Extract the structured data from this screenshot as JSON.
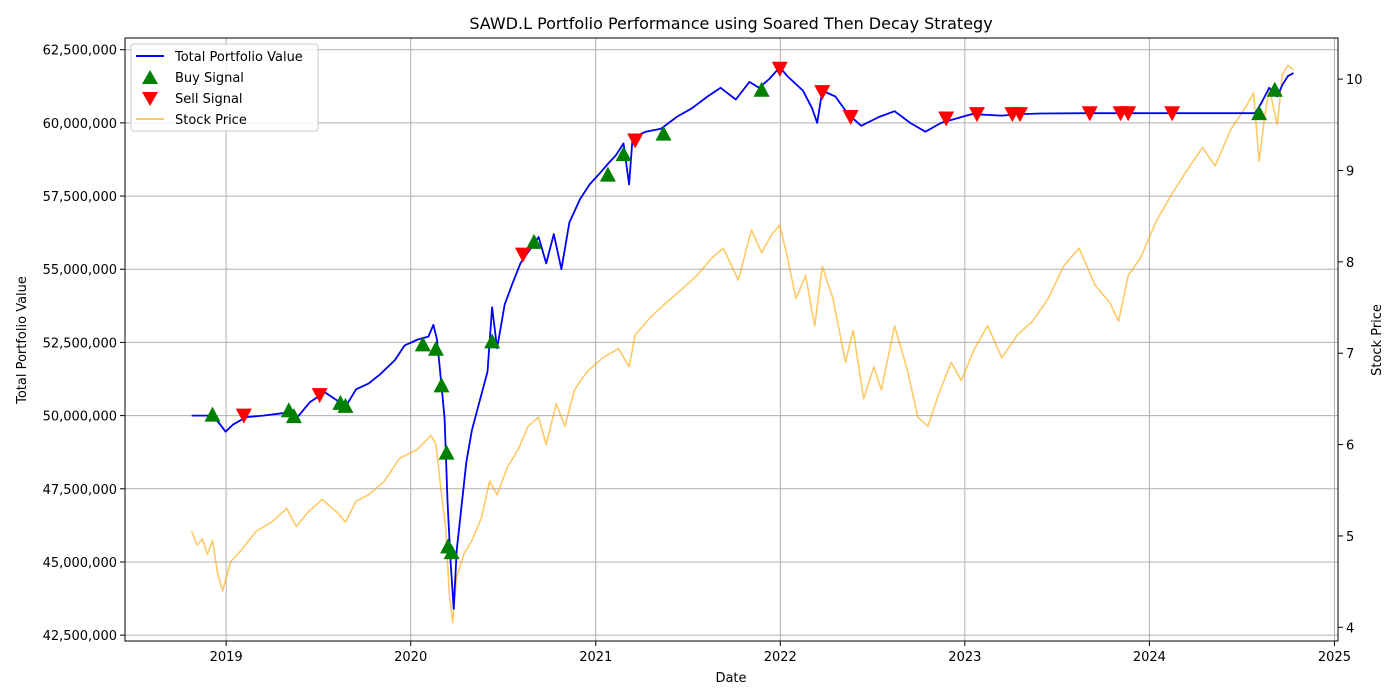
{
  "chart_data": {
    "type": "line",
    "title": "SAWD.L Portfolio Performance using Soared Then Decay Strategy",
    "xlabel": "Date",
    "ylabel": "Total Portfolio Value",
    "ylabel_right": "Stock Price",
    "xlim": [
      "2018-06-15",
      "2025-01-08"
    ],
    "ylim": [
      42300000,
      62900000
    ],
    "ylim_right": [
      3.85,
      10.45
    ],
    "grid": true,
    "legend_position": "top-left",
    "x_ticks": [
      "2019",
      "2020",
      "2021",
      "2022",
      "2023",
      "2024",
      "2025"
    ],
    "x_tick_dates": [
      "2019-01-01",
      "2020-01-01",
      "2021-01-01",
      "2022-01-01",
      "2023-01-01",
      "2024-01-01",
      "2025-01-01"
    ],
    "y_ticks": [
      42500000,
      45000000,
      47500000,
      50000000,
      52500000,
      55000000,
      57500000,
      60000000,
      62500000
    ],
    "y_tick_labels": [
      "42,500,000",
      "45,000,000",
      "47,500,000",
      "50,000,000",
      "52,500,000",
      "55,000,000",
      "57,500,000",
      "60,000,000",
      "62,500,000"
    ],
    "y_ticks_right": [
      4,
      5,
      6,
      7,
      8,
      9,
      10
    ],
    "y_tick_labels_right": [
      "4",
      "5",
      "6",
      "7",
      "8",
      "9",
      "10"
    ],
    "series": [
      {
        "name": "Total Portfolio Value",
        "color": "#0000ff",
        "axis": "left",
        "points": [
          [
            "2018-10-25",
            50000000
          ],
          [
            "2018-12-05",
            50000000
          ],
          [
            "2018-12-20",
            49700000
          ],
          [
            "2018-12-31",
            49450000
          ],
          [
            "2019-01-15",
            49700000
          ],
          [
            "2019-02-10",
            49950000
          ],
          [
            "2019-03-15",
            50000000
          ],
          [
            "2019-05-01",
            50100000
          ],
          [
            "2019-05-20",
            49900000
          ],
          [
            "2019-06-15",
            50450000
          ],
          [
            "2019-07-15",
            50800000
          ],
          [
            "2019-08-10",
            50500000
          ],
          [
            "2019-08-25",
            50300000
          ],
          [
            "2019-09-15",
            50900000
          ],
          [
            "2019-10-10",
            51100000
          ],
          [
            "2019-11-01",
            51400000
          ],
          [
            "2019-12-01",
            51900000
          ],
          [
            "2019-12-20",
            52400000
          ],
          [
            "2020-01-15",
            52600000
          ],
          [
            "2020-02-05",
            52700000
          ],
          [
            "2020-02-15",
            53100000
          ],
          [
            "2020-02-22",
            52600000
          ],
          [
            "2020-03-01",
            51200000
          ],
          [
            "2020-03-08",
            49900000
          ],
          [
            "2020-03-14",
            47000000
          ],
          [
            "2020-03-20",
            45000000
          ],
          [
            "2020-03-26",
            43400000
          ],
          [
            "2020-04-01",
            45400000
          ],
          [
            "2020-04-10",
            46800000
          ],
          [
            "2020-04-20",
            48400000
          ],
          [
            "2020-05-01",
            49500000
          ],
          [
            "2020-05-15",
            50400000
          ],
          [
            "2020-06-01",
            51500000
          ],
          [
            "2020-06-10",
            53700000
          ],
          [
            "2020-06-20",
            52300000
          ],
          [
            "2020-07-05",
            53800000
          ],
          [
            "2020-07-20",
            54500000
          ],
          [
            "2020-08-05",
            55200000
          ],
          [
            "2020-08-25",
            55700000
          ],
          [
            "2020-09-10",
            56100000
          ],
          [
            "2020-09-25",
            55200000
          ],
          [
            "2020-10-10",
            56200000
          ],
          [
            "2020-10-25",
            55000000
          ],
          [
            "2020-11-10",
            56600000
          ],
          [
            "2020-12-01",
            57400000
          ],
          [
            "2020-12-20",
            57900000
          ],
          [
            "2021-01-10",
            58300000
          ],
          [
            "2021-01-25",
            58600000
          ],
          [
            "2021-02-10",
            58900000
          ],
          [
            "2021-02-25",
            59300000
          ],
          [
            "2021-03-08",
            57900000
          ],
          [
            "2021-03-15",
            59500000
          ],
          [
            "2021-04-10",
            59700000
          ],
          [
            "2021-05-10",
            59800000
          ],
          [
            "2021-06-10",
            60200000
          ],
          [
            "2021-07-10",
            60500000
          ],
          [
            "2021-08-10",
            60900000
          ],
          [
            "2021-09-05",
            61200000
          ],
          [
            "2021-10-05",
            60800000
          ],
          [
            "2021-11-01",
            61400000
          ],
          [
            "2021-11-20",
            61200000
          ],
          [
            "2021-12-10",
            61500000
          ],
          [
            "2021-12-31",
            61900000
          ],
          [
            "2022-01-15",
            61600000
          ],
          [
            "2022-02-15",
            61100000
          ],
          [
            "2022-03-05",
            60500000
          ],
          [
            "2022-03-15",
            60000000
          ],
          [
            "2022-03-25",
            61100000
          ],
          [
            "2022-04-20",
            60900000
          ],
          [
            "2022-05-15",
            60300000
          ],
          [
            "2022-06-10",
            59900000
          ],
          [
            "2022-07-15",
            60200000
          ],
          [
            "2022-08-15",
            60400000
          ],
          [
            "2022-09-15",
            60000000
          ],
          [
            "2022-10-15",
            59700000
          ],
          [
            "2022-11-15",
            60000000
          ],
          [
            "2022-12-15",
            60150000
          ],
          [
            "2023-01-15",
            60300000
          ],
          [
            "2023-03-15",
            60250000
          ],
          [
            "2023-04-20",
            60300000
          ],
          [
            "2023-06-01",
            60320000
          ],
          [
            "2023-09-01",
            60330000
          ],
          [
            "2023-12-01",
            60330000
          ],
          [
            "2024-03-01",
            60330000
          ],
          [
            "2024-06-01",
            60330000
          ],
          [
            "2024-07-28",
            60330000
          ],
          [
            "2024-08-10",
            60700000
          ],
          [
            "2024-08-25",
            61200000
          ],
          [
            "2024-09-10",
            60900000
          ],
          [
            "2024-09-20",
            61300000
          ],
          [
            "2024-10-01",
            61600000
          ],
          [
            "2024-10-12",
            61700000
          ]
        ]
      },
      {
        "name": "Stock Price",
        "color": "#ffa500",
        "axis": "right",
        "points": [
          [
            "2018-10-25",
            5.05
          ],
          [
            "2018-11-05",
            4.9
          ],
          [
            "2018-11-15",
            4.97
          ],
          [
            "2018-11-25",
            4.8
          ],
          [
            "2018-12-05",
            4.95
          ],
          [
            "2018-12-15",
            4.6
          ],
          [
            "2018-12-25",
            4.4
          ],
          [
            "2019-01-10",
            4.72
          ],
          [
            "2019-02-01",
            4.85
          ],
          [
            "2019-03-01",
            5.05
          ],
          [
            "2019-04-01",
            5.15
          ],
          [
            "2019-05-01",
            5.3
          ],
          [
            "2019-05-20",
            5.1
          ],
          [
            "2019-06-10",
            5.25
          ],
          [
            "2019-07-10",
            5.4
          ],
          [
            "2019-08-10",
            5.25
          ],
          [
            "2019-08-25",
            5.15
          ],
          [
            "2019-09-15",
            5.38
          ],
          [
            "2019-10-10",
            5.45
          ],
          [
            "2019-11-10",
            5.6
          ],
          [
            "2019-12-10",
            5.85
          ],
          [
            "2020-01-15",
            5.95
          ],
          [
            "2020-02-10",
            6.1
          ],
          [
            "2020-02-20",
            6.0
          ],
          [
            "2020-03-01",
            5.5
          ],
          [
            "2020-03-10",
            5.1
          ],
          [
            "2020-03-17",
            4.4
          ],
          [
            "2020-03-24",
            4.05
          ],
          [
            "2020-04-01",
            4.55
          ],
          [
            "2020-04-15",
            4.8
          ],
          [
            "2020-05-01",
            4.95
          ],
          [
            "2020-05-20",
            5.2
          ],
          [
            "2020-06-05",
            5.6
          ],
          [
            "2020-06-20",
            5.45
          ],
          [
            "2020-07-10",
            5.75
          ],
          [
            "2020-08-01",
            5.95
          ],
          [
            "2020-08-20",
            6.2
          ],
          [
            "2020-09-10",
            6.3
          ],
          [
            "2020-09-25",
            6.0
          ],
          [
            "2020-10-15",
            6.45
          ],
          [
            "2020-11-01",
            6.2
          ],
          [
            "2020-11-20",
            6.6
          ],
          [
            "2020-12-15",
            6.8
          ],
          [
            "2021-01-15",
            6.95
          ],
          [
            "2021-02-15",
            7.05
          ],
          [
            "2021-03-08",
            6.85
          ],
          [
            "2021-03-20",
            7.2
          ],
          [
            "2021-04-20",
            7.4
          ],
          [
            "2021-05-20",
            7.55
          ],
          [
            "2021-06-20",
            7.7
          ],
          [
            "2021-07-20",
            7.85
          ],
          [
            "2021-08-20",
            8.05
          ],
          [
            "2021-09-10",
            8.15
          ],
          [
            "2021-10-10",
            7.8
          ],
          [
            "2021-11-05",
            8.35
          ],
          [
            "2021-11-25",
            8.1
          ],
          [
            "2021-12-15",
            8.3
          ],
          [
            "2021-12-31",
            8.4
          ],
          [
            "2022-01-15",
            8.05
          ],
          [
            "2022-02-01",
            7.6
          ],
          [
            "2022-02-20",
            7.85
          ],
          [
            "2022-03-10",
            7.3
          ],
          [
            "2022-03-25",
            7.95
          ],
          [
            "2022-04-15",
            7.6
          ],
          [
            "2022-05-10",
            6.9
          ],
          [
            "2022-05-25",
            7.25
          ],
          [
            "2022-06-15",
            6.5
          ],
          [
            "2022-07-05",
            6.85
          ],
          [
            "2022-07-20",
            6.6
          ],
          [
            "2022-08-15",
            7.3
          ],
          [
            "2022-09-10",
            6.8
          ],
          [
            "2022-09-30",
            6.3
          ],
          [
            "2022-10-20",
            6.2
          ],
          [
            "2022-11-10",
            6.55
          ],
          [
            "2022-12-05",
            6.9
          ],
          [
            "2022-12-25",
            6.7
          ],
          [
            "2023-01-20",
            7.05
          ],
          [
            "2023-02-15",
            7.3
          ],
          [
            "2023-03-15",
            6.95
          ],
          [
            "2023-04-15",
            7.2
          ],
          [
            "2023-05-15",
            7.35
          ],
          [
            "2023-06-15",
            7.6
          ],
          [
            "2023-07-15",
            7.95
          ],
          [
            "2023-08-15",
            8.15
          ],
          [
            "2023-09-15",
            7.75
          ],
          [
            "2023-10-15",
            7.55
          ],
          [
            "2023-11-01",
            7.35
          ],
          [
            "2023-11-20",
            7.85
          ],
          [
            "2023-12-15",
            8.05
          ],
          [
            "2024-01-15",
            8.45
          ],
          [
            "2024-02-15",
            8.75
          ],
          [
            "2024-03-15",
            9.0
          ],
          [
            "2024-04-15",
            9.25
          ],
          [
            "2024-05-10",
            9.05
          ],
          [
            "2024-06-10",
            9.45
          ],
          [
            "2024-07-10",
            9.7
          ],
          [
            "2024-07-25",
            9.85
          ],
          [
            "2024-08-05",
            9.1
          ],
          [
            "2024-08-15",
            9.55
          ],
          [
            "2024-08-25",
            9.9
          ],
          [
            "2024-09-10",
            9.5
          ],
          [
            "2024-09-20",
            10.05
          ],
          [
            "2024-10-01",
            10.15
          ],
          [
            "2024-10-12",
            10.1
          ]
        ]
      }
    ],
    "buy_signals": {
      "name": "Buy Signal",
      "color": "#008000",
      "marker": "triangle-up",
      "points": [
        [
          "2018-12-05",
          50000000
        ],
        [
          "2019-05-05",
          50150000
        ],
        [
          "2019-05-15",
          49950000
        ],
        [
          "2019-08-15",
          50400000
        ],
        [
          "2019-08-25",
          50300000
        ],
        [
          "2020-01-25",
          52400000
        ],
        [
          "2020-02-20",
          52250000
        ],
        [
          "2020-03-02",
          51000000
        ],
        [
          "2020-03-12",
          48700000
        ],
        [
          "2020-03-15",
          45500000
        ],
        [
          "2020-03-22",
          45300000
        ],
        [
          "2020-06-10",
          52500000
        ],
        [
          "2020-09-01",
          55900000
        ],
        [
          "2021-01-25",
          58200000
        ],
        [
          "2021-02-25",
          58900000
        ],
        [
          "2021-05-15",
          59600000
        ],
        [
          "2021-11-25",
          61100000
        ],
        [
          "2024-08-05",
          60300000
        ],
        [
          "2024-09-05",
          61100000
        ]
      ]
    },
    "sell_signals": {
      "name": "Sell Signal",
      "color": "#ff0000",
      "marker": "triangle-down",
      "points": [
        [
          "2019-02-05",
          50000000
        ],
        [
          "2019-07-05",
          50700000
        ],
        [
          "2020-08-10",
          55500000
        ],
        [
          "2021-03-20",
          59400000
        ],
        [
          "2021-12-31",
          61850000
        ],
        [
          "2022-03-25",
          61050000
        ],
        [
          "2022-05-20",
          60200000
        ],
        [
          "2022-11-25",
          60150000
        ],
        [
          "2023-01-25",
          60300000
        ],
        [
          "2023-04-05",
          60300000
        ],
        [
          "2023-04-20",
          60300000
        ],
        [
          "2023-09-05",
          60330000
        ],
        [
          "2023-11-05",
          60330000
        ],
        [
          "2023-11-20",
          60330000
        ],
        [
          "2024-02-15",
          60330000
        ]
      ]
    }
  }
}
